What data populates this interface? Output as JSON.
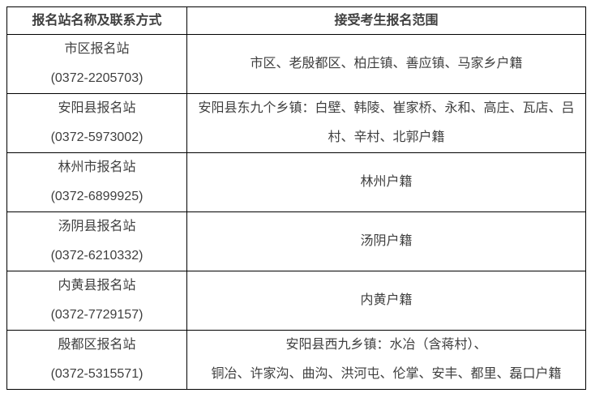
{
  "table": {
    "headers": {
      "station": "报名站名称及联系方式",
      "scope": "接受考生报名范围"
    },
    "rows": [
      {
        "station": "市区报名站",
        "phone": "(0372-2205703)",
        "scope": "市区、老殷都区、柏庄镇、善应镇、马家乡户籍"
      },
      {
        "station": "安阳县报名站",
        "phone": "(0372-5973002)",
        "scope": "安阳县东九个乡镇：白壁、韩陵、崔家桥、永和、高庄、瓦店、吕村、辛村、北郭户籍"
      },
      {
        "station": "林州市报名站",
        "phone": "(0372-6899925)",
        "scope": "林州户籍"
      },
      {
        "station": "汤阴县报名站",
        "phone": "(0372-6210332)",
        "scope": "汤阴户籍"
      },
      {
        "station": "内黄县报名站",
        "phone": "(0372-7729157)",
        "scope": "内黄户籍"
      },
      {
        "station": "殷都区报名站",
        "phone": "(0372-5315571)",
        "scope": "安阳县西九乡镇：水冶（含蒋村）、\n铜冶、许家沟、曲沟、洪河屯、伦掌、安丰、都里、磊口户籍"
      }
    ],
    "colors": {
      "text": "#3f3f3f",
      "border": "#000000",
      "background": "#ffffff"
    }
  }
}
